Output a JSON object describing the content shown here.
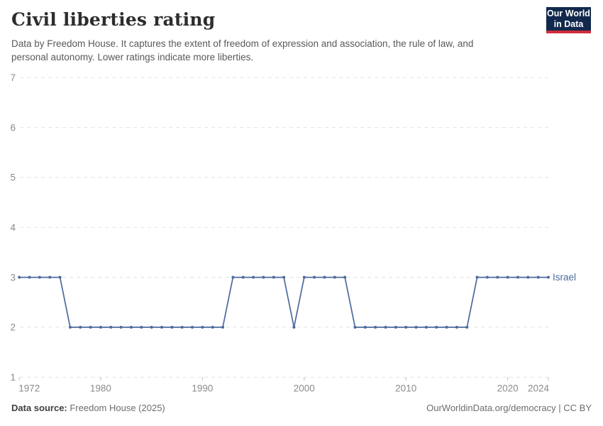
{
  "header": {
    "title": "Civil liberties rating",
    "subtitle_line1": "Data by Freedom House. It captures the extent of freedom of expression and association, the rule of law, and",
    "subtitle_line2": "personal autonomy. Lower ratings indicate more liberties.",
    "logo": {
      "line1": "Our World",
      "line2": "in Data"
    }
  },
  "footer": {
    "source_label": "Data source:",
    "source_value": " Freedom House (2025)",
    "credit": "OurWorldinData.org/democracy | CC BY"
  },
  "colors": {
    "series_blue": "#4C6A9C",
    "grid": "#e2e2e2",
    "tick": "#bcbcbc",
    "axis_text": "#8b8b8b",
    "logo_navy": "#12294d",
    "logo_red": "#cf2c3e"
  },
  "chart_data": {
    "type": "line",
    "title": "Civil liberties rating",
    "xlabel": "",
    "ylabel": "",
    "ylim": [
      1,
      7
    ],
    "xlim": [
      1972,
      2024
    ],
    "yticks": [
      1,
      2,
      3,
      4,
      5,
      6,
      7
    ],
    "xticks": [
      1972,
      1980,
      1990,
      2000,
      2010,
      2020,
      2024
    ],
    "grid": "horizontal-dashed",
    "legend_position": "end-of-line-label",
    "x": [
      1972,
      1973,
      1974,
      1975,
      1976,
      1977,
      1978,
      1979,
      1980,
      1981,
      1982,
      1983,
      1984,
      1985,
      1986,
      1987,
      1988,
      1989,
      1990,
      1991,
      1992,
      1993,
      1994,
      1995,
      1996,
      1997,
      1998,
      1999,
      2000,
      2001,
      2002,
      2003,
      2004,
      2005,
      2006,
      2007,
      2008,
      2009,
      2010,
      2011,
      2012,
      2013,
      2014,
      2015,
      2016,
      2017,
      2018,
      2019,
      2020,
      2021,
      2022,
      2023,
      2024
    ],
    "series": [
      {
        "name": "Israel",
        "values": [
          3,
          3,
          3,
          3,
          3,
          2,
          2,
          2,
          2,
          2,
          2,
          2,
          2,
          2,
          2,
          2,
          2,
          2,
          2,
          2,
          2,
          3,
          3,
          3,
          3,
          3,
          3,
          2,
          3,
          3,
          3,
          3,
          3,
          2,
          2,
          2,
          2,
          2,
          2,
          2,
          2,
          2,
          2,
          2,
          2,
          3,
          3,
          3,
          3,
          3,
          3,
          3,
          3
        ]
      }
    ]
  }
}
